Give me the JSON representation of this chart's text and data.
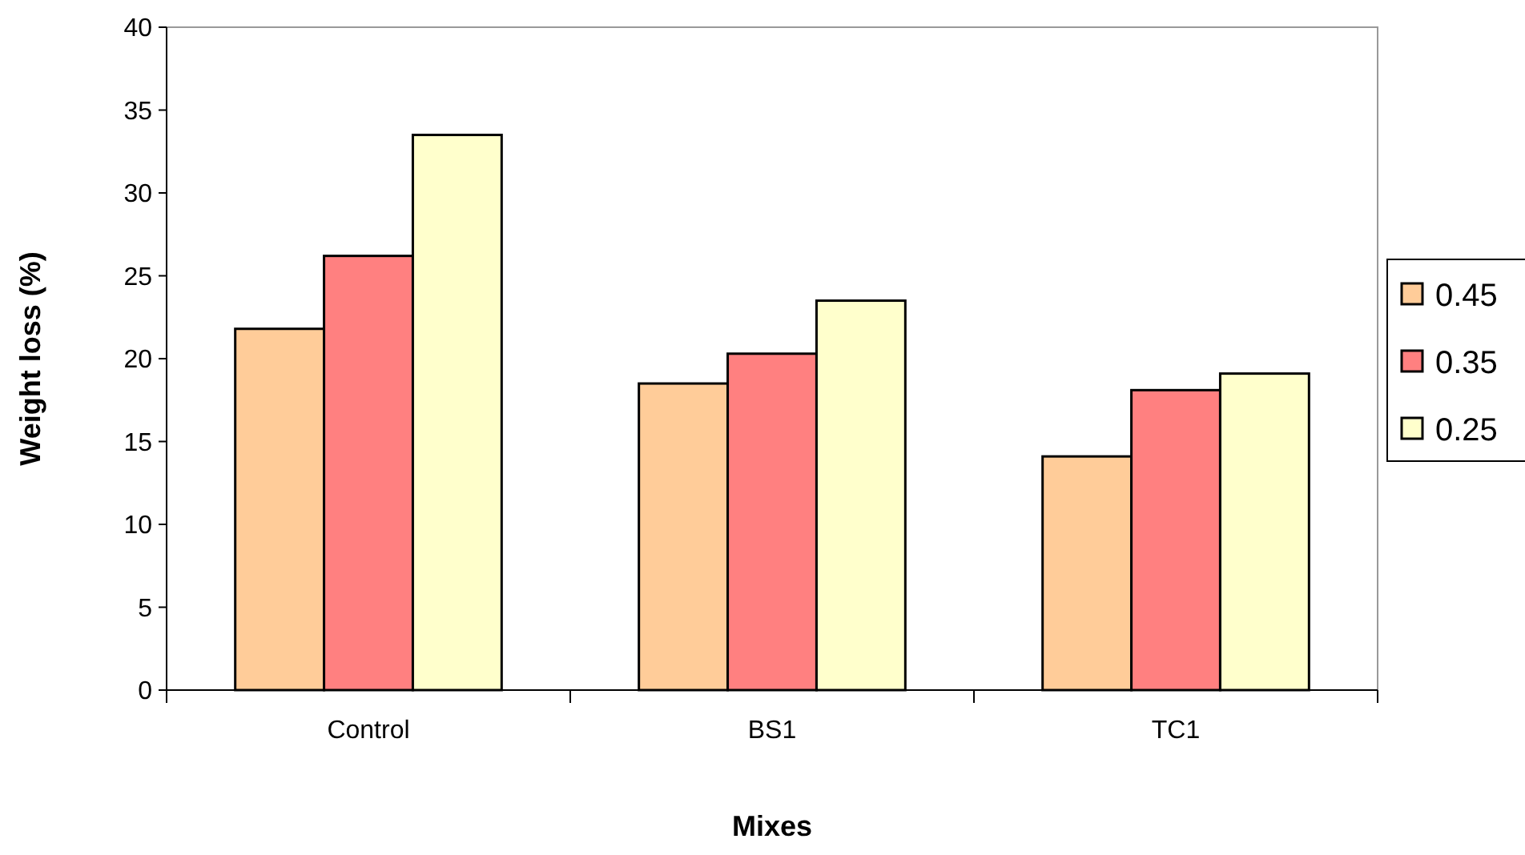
{
  "chart_data": {
    "type": "bar",
    "xlabel": "Mixes",
    "ylabel": "Weight loss (%)",
    "categories": [
      "Control",
      "BS1",
      "TC1"
    ],
    "series": [
      {
        "name": "0.45",
        "color": "#ffcc99",
        "values": [
          21.8,
          18.5,
          14.1
        ]
      },
      {
        "name": "0.35",
        "color": "#ff8080",
        "values": [
          26.2,
          20.3,
          18.1
        ]
      },
      {
        "name": "0.25",
        "color": "#ffffcc",
        "values": [
          33.5,
          23.5,
          19.1
        ]
      }
    ],
    "ylim": [
      0,
      40
    ],
    "yticks": [
      0,
      5,
      10,
      15,
      20,
      25,
      30,
      35,
      40
    ],
    "grid": false,
    "legend": "right"
  }
}
